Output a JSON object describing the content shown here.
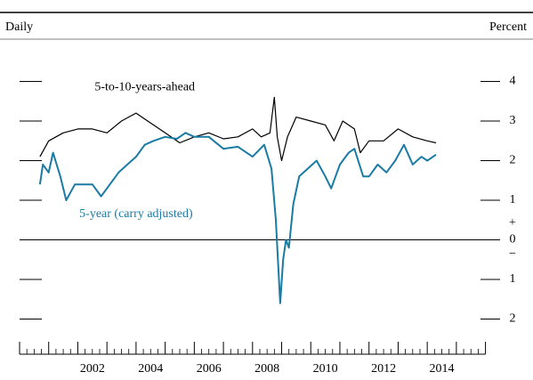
{
  "chart_data": {
    "type": "line",
    "left_label": "Daily",
    "right_label": "Percent",
    "zero_plus": "+",
    "zero_minus": "−",
    "xlim": [
      2000,
      2016
    ],
    "xticks": [
      2000,
      2001,
      2002,
      2003,
      2004,
      2005,
      2006,
      2007,
      2008,
      2009,
      2010,
      2011,
      2012,
      2013,
      2014,
      2015,
      2016
    ],
    "xtick_labels": [
      {
        "value": 2002.5,
        "label": "2002"
      },
      {
        "value": 2004.5,
        "label": "2004"
      },
      {
        "value": 2006.5,
        "label": "2006"
      },
      {
        "value": 2008.5,
        "label": "2008"
      },
      {
        "value": 2010.5,
        "label": "2010"
      },
      {
        "value": 2012.5,
        "label": "2012"
      },
      {
        "value": 2014.5,
        "label": "2014"
      }
    ],
    "ylim": [
      -3,
      5
    ],
    "yticks": [
      {
        "value": -2,
        "label": "2"
      },
      {
        "value": -1,
        "label": "1"
      },
      0,
      1,
      2,
      3,
      4
    ],
    "series": [
      {
        "name": "5-to-10-years-ahead",
        "color": "#000000",
        "x": [
          2000.7,
          2001,
          2001.5,
          2002,
          2002.5,
          2003,
          2003.5,
          2004,
          2004.5,
          2005,
          2005.5,
          2006,
          2006.5,
          2007,
          2007.5,
          2008,
          2008.3,
          2008.6,
          2008.75,
          2008.85,
          2009,
          2009.2,
          2009.5,
          2010,
          2010.5,
          2010.8,
          2011.1,
          2011.5,
          2011.7,
          2012,
          2012.5,
          2013,
          2013.5,
          2014,
          2014.3
        ],
        "values": [
          2.1,
          2.5,
          2.7,
          2.8,
          2.8,
          2.7,
          3.0,
          3.2,
          2.95,
          2.7,
          2.45,
          2.6,
          2.7,
          2.55,
          2.6,
          2.8,
          2.6,
          2.7,
          3.6,
          2.6,
          2.0,
          2.6,
          3.1,
          3.0,
          2.9,
          2.5,
          3.0,
          2.8,
          2.2,
          2.5,
          2.5,
          2.8,
          2.6,
          2.5,
          2.45
        ]
      },
      {
        "name": "5-year (carry adjusted)",
        "color": "#1a7ba4",
        "x": [
          2000.7,
          2000.8,
          2001,
          2001.15,
          2001.4,
          2001.6,
          2001.9,
          2002.2,
          2002.5,
          2002.8,
          2003,
          2003.4,
          2003.7,
          2004,
          2004.3,
          2004.6,
          2005,
          2005.4,
          2005.7,
          2006,
          2006.5,
          2007,
          2007.5,
          2008,
          2008.4,
          2008.65,
          2008.8,
          2008.95,
          2009.05,
          2009.15,
          2009.25,
          2009.4,
          2009.6,
          2009.9,
          2010.2,
          2010.5,
          2010.7,
          2011,
          2011.3,
          2011.5,
          2011.8,
          2012,
          2012.3,
          2012.6,
          2012.9,
          2013.2,
          2013.5,
          2013.8,
          2014,
          2014.3
        ],
        "values": [
          1.4,
          1.9,
          1.7,
          2.2,
          1.6,
          1.0,
          1.4,
          1.4,
          1.4,
          1.1,
          1.3,
          1.7,
          1.9,
          2.1,
          2.4,
          2.5,
          2.6,
          2.55,
          2.7,
          2.6,
          2.6,
          2.3,
          2.35,
          2.1,
          2.4,
          1.8,
          0.5,
          -1.6,
          -0.5,
          0.0,
          -0.2,
          0.9,
          1.6,
          1.8,
          2.0,
          1.6,
          1.3,
          1.9,
          2.2,
          2.3,
          1.6,
          1.6,
          1.9,
          1.7,
          2.0,
          2.4,
          1.9,
          2.1,
          2.0,
          2.15
        ]
      }
    ]
  }
}
